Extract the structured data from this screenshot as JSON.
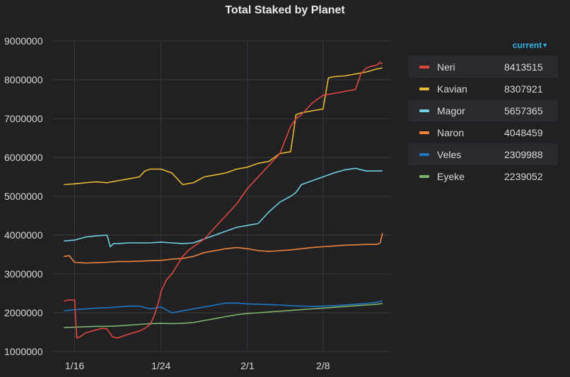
{
  "chart_data": {
    "type": "line",
    "title": "Total Staked by Planet",
    "xlabel": "",
    "ylabel": "",
    "x_ticks": [
      "1/16",
      "1/24",
      "2/1",
      "2/8"
    ],
    "x_range": [
      "1/15",
      "2/13"
    ],
    "ylim": [
      1000000,
      9000000
    ],
    "y_ticks": [
      "1000000",
      "2000000",
      "3000000",
      "4000000",
      "5000000",
      "6000000",
      "7000000",
      "8000000",
      "9000000"
    ],
    "grid": true,
    "legend_position": "right",
    "legend_column_label": "current",
    "series": [
      {
        "name": "Neri",
        "color": "#e0483e",
        "current": "8413515",
        "x": [
          0,
          0.5,
          1,
          1.2,
          1.5,
          2,
          2.5,
          3,
          3.3,
          3.5,
          4,
          4.5,
          5,
          6,
          7,
          7.5,
          8,
          8.4,
          8.8,
          9,
          9.5,
          10,
          11,
          11.5,
          12,
          13,
          14,
          15,
          16,
          17,
          18,
          19,
          20,
          21,
          21.5,
          22,
          23,
          24,
          25,
          26,
          27,
          27.5,
          28,
          28.5,
          29,
          29.3,
          29.5
        ],
        "values": [
          2300000,
          2330000,
          2330000,
          1350000,
          1380000,
          1480000,
          1520000,
          1560000,
          1580000,
          1600000,
          1580000,
          1380000,
          1350000,
          1450000,
          1530000,
          1600000,
          1700000,
          1950000,
          2300000,
          2550000,
          2850000,
          3000000,
          3450000,
          3600000,
          3700000,
          3900000,
          4200000,
          4500000,
          4800000,
          5200000,
          5500000,
          5800000,
          6100000,
          6800000,
          7000000,
          7100000,
          7400000,
          7600000,
          7650000,
          7700000,
          7750000,
          8150000,
          8300000,
          8350000,
          8380000,
          8450000,
          8413515
        ]
      },
      {
        "name": "Kavian",
        "color": "#e8b932",
        "current": "8307921",
        "x": [
          0,
          1,
          2,
          3,
          4,
          5,
          6,
          7,
          7.5,
          8,
          9,
          9.5,
          10,
          11,
          12,
          13,
          14,
          15,
          16,
          17,
          18,
          19,
          20,
          21,
          21.5,
          22,
          23,
          24,
          24.5,
          25,
          26,
          27,
          28,
          29,
          29.5
        ],
        "values": [
          5300000,
          5320000,
          5350000,
          5370000,
          5350000,
          5400000,
          5450000,
          5500000,
          5650000,
          5700000,
          5700000,
          5650000,
          5600000,
          5300000,
          5350000,
          5500000,
          5550000,
          5600000,
          5700000,
          5750000,
          5850000,
          5900000,
          6100000,
          6150000,
          7100000,
          7150000,
          7200000,
          7250000,
          8050000,
          8080000,
          8100000,
          8150000,
          8200000,
          8280000,
          8307921
        ]
      },
      {
        "name": "Magor",
        "color": "#6ed0e0",
        "current": "5657365",
        "x": [
          0,
          1,
          2,
          3,
          4,
          4.3,
          4.6,
          5,
          6,
          7,
          8,
          9,
          10,
          11,
          12,
          13,
          14,
          15,
          16,
          17,
          18,
          19,
          20,
          21,
          21.5,
          22,
          23,
          24,
          25,
          26,
          27,
          28,
          29,
          29.5
        ],
        "values": [
          3850000,
          3870000,
          3950000,
          3980000,
          4000000,
          3700000,
          3780000,
          3780000,
          3800000,
          3800000,
          3800000,
          3820000,
          3800000,
          3780000,
          3800000,
          3900000,
          4000000,
          4100000,
          4200000,
          4250000,
          4300000,
          4600000,
          4850000,
          5000000,
          5100000,
          5300000,
          5400000,
          5500000,
          5600000,
          5680000,
          5720000,
          5650000,
          5650000,
          5657365
        ]
      },
      {
        "name": "Naron",
        "color": "#ef843c",
        "current": "4048459",
        "x": [
          0,
          0.5,
          1,
          2,
          3,
          4,
          5,
          6,
          7,
          8,
          9,
          10,
          11,
          12,
          13,
          14,
          15,
          16,
          17,
          18,
          19,
          20,
          21,
          22,
          23,
          24,
          25,
          26,
          27,
          28,
          29,
          29.3,
          29.5
        ],
        "values": [
          3450000,
          3470000,
          3300000,
          3280000,
          3290000,
          3300000,
          3320000,
          3320000,
          3330000,
          3340000,
          3350000,
          3380000,
          3400000,
          3450000,
          3550000,
          3600000,
          3650000,
          3680000,
          3650000,
          3600000,
          3580000,
          3600000,
          3620000,
          3650000,
          3680000,
          3700000,
          3720000,
          3740000,
          3750000,
          3760000,
          3760000,
          3800000,
          4048459
        ]
      },
      {
        "name": "Veles",
        "color": "#1f78c1",
        "current": "2309988",
        "x": [
          0,
          1,
          2,
          3,
          4,
          5,
          6,
          7,
          8,
          9,
          10,
          11,
          12,
          13,
          14,
          15,
          16,
          17,
          18,
          19,
          20,
          21,
          22,
          23,
          24,
          25,
          26,
          27,
          28,
          29,
          29.5
        ],
        "values": [
          2050000,
          2080000,
          2100000,
          2120000,
          2130000,
          2150000,
          2170000,
          2170000,
          2100000,
          2150000,
          2000000,
          2050000,
          2100000,
          2150000,
          2200000,
          2250000,
          2250000,
          2230000,
          2220000,
          2210000,
          2200000,
          2180000,
          2170000,
          2160000,
          2170000,
          2180000,
          2200000,
          2220000,
          2240000,
          2270000,
          2309988
        ]
      },
      {
        "name": "Eyeke",
        "color": "#7eb26d",
        "current": "2239052",
        "x": [
          0,
          1,
          2,
          3,
          4,
          5,
          6,
          7,
          8,
          9,
          10,
          11,
          12,
          13,
          14,
          15,
          16,
          17,
          18,
          19,
          20,
          21,
          22,
          23,
          24,
          25,
          26,
          27,
          28,
          29,
          29.5
        ],
        "values": [
          1620000,
          1630000,
          1640000,
          1650000,
          1650000,
          1660000,
          1680000,
          1700000,
          1720000,
          1730000,
          1720000,
          1730000,
          1750000,
          1800000,
          1850000,
          1900000,
          1950000,
          1980000,
          2000000,
          2020000,
          2040000,
          2060000,
          2080000,
          2100000,
          2120000,
          2140000,
          2160000,
          2180000,
          2200000,
          2220000,
          2239052
        ]
      }
    ]
  }
}
